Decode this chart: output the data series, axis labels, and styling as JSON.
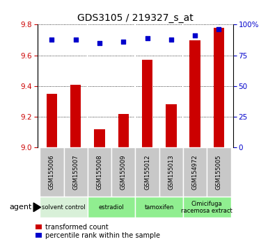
{
  "title": "GDS3105 / 219327_s_at",
  "samples": [
    "GSM155006",
    "GSM155007",
    "GSM155008",
    "GSM155009",
    "GSM155012",
    "GSM155013",
    "GSM154972",
    "GSM155005"
  ],
  "red_values": [
    9.35,
    9.41,
    9.12,
    9.22,
    9.57,
    9.28,
    9.7,
    9.78
  ],
  "blue_values": [
    88,
    88,
    85,
    86,
    89,
    88,
    91,
    96
  ],
  "ylim_left": [
    9.0,
    9.8
  ],
  "ylim_right": [
    0,
    100
  ],
  "yticks_left": [
    9.0,
    9.2,
    9.4,
    9.6,
    9.8
  ],
  "yticks_right": [
    0,
    25,
    50,
    75,
    100
  ],
  "ytick_labels_right": [
    "0",
    "25",
    "50",
    "75",
    "100%"
  ],
  "bar_color": "#cc0000",
  "dot_color": "#0000cc",
  "bar_width": 0.45,
  "agent_label": "agent",
  "legend_red": "transformed count",
  "legend_blue": "percentile rank within the sample",
  "left_tick_color": "#cc0000",
  "right_tick_color": "#0000cc",
  "tick_label_bg": "#c8c8c8",
  "solvent_color": "#d8f0d8",
  "group_color": "#90ee90",
  "group_boundaries": [
    {
      "label": "solvent control",
      "start": 0,
      "end": 2,
      "color": "#d8f0d8"
    },
    {
      "label": "estradiol",
      "start": 2,
      "end": 4,
      "color": "#90ee90"
    },
    {
      "label": "tamoxifen",
      "start": 4,
      "end": 6,
      "color": "#90ee90"
    },
    {
      "label": "Cimicifuga\nracemosa extract",
      "start": 6,
      "end": 8,
      "color": "#90ee90"
    }
  ]
}
